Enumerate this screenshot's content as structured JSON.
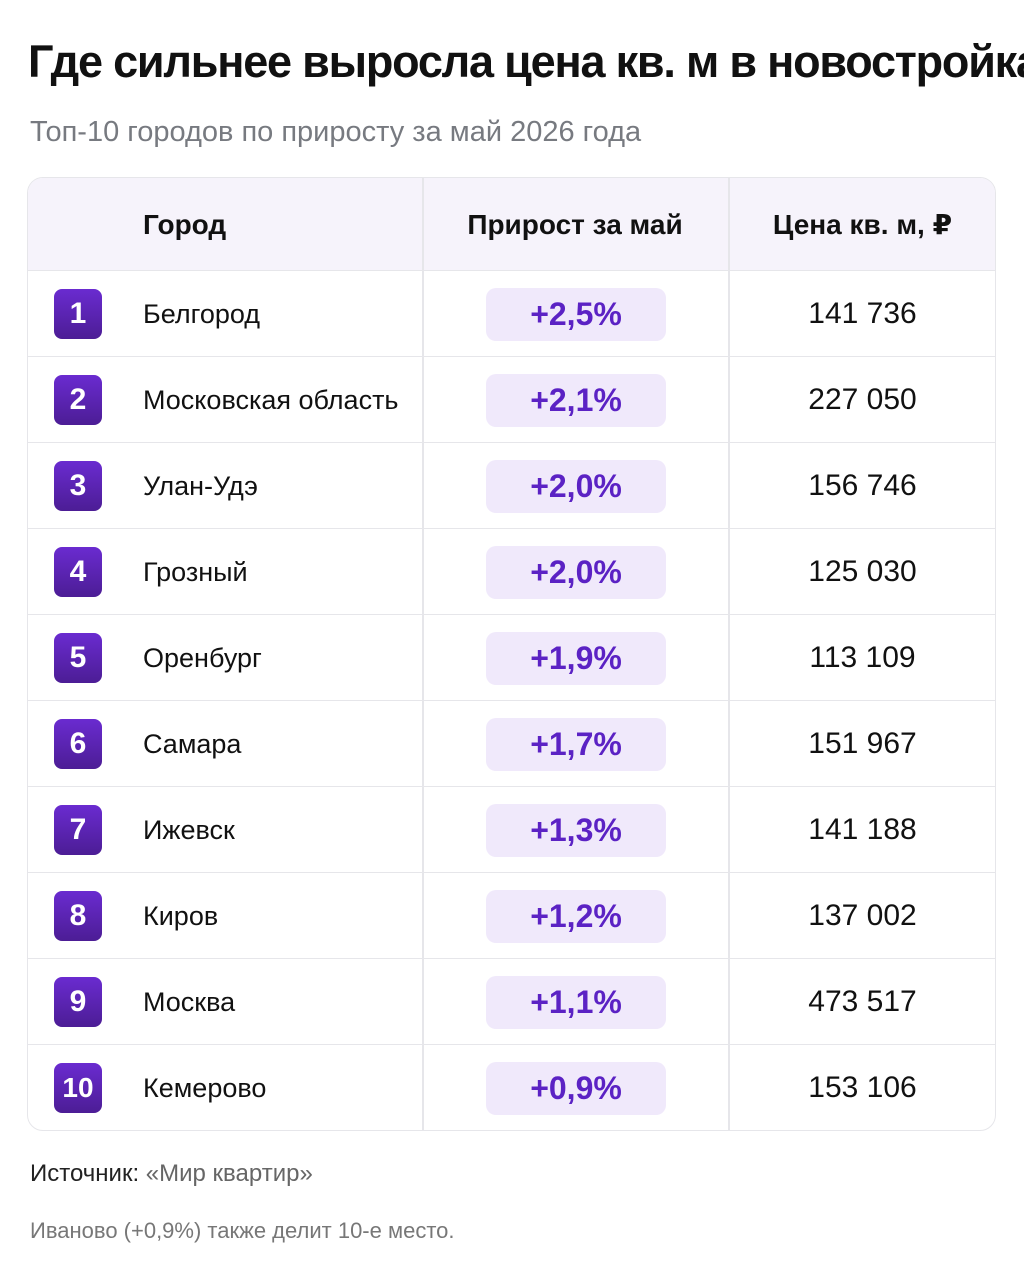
{
  "chart_data": {
    "type": "table",
    "title": "Где сильнее выросла цена кв. м в новостройках",
    "subtitle": "Топ-10 городов по приросту за май 2026 года",
    "columns": [
      "Город",
      "Прирост за май",
      "Цена кв. м, ₽"
    ],
    "rows": [
      {
        "rank": "1",
        "city": "Белгород",
        "growth": "+2,5%",
        "price": "141 736"
      },
      {
        "rank": "2",
        "city": "Московская область",
        "growth": "+2,1%",
        "price": "227 050"
      },
      {
        "rank": "3",
        "city": "Улан-Удэ",
        "growth": "+2,0%",
        "price": "156 746"
      },
      {
        "rank": "4",
        "city": "Грозный",
        "growth": "+2,0%",
        "price": "125 030"
      },
      {
        "rank": "5",
        "city": "Оренбург",
        "growth": "+1,9%",
        "price": "113 109"
      },
      {
        "rank": "6",
        "city": "Самара",
        "growth": "+1,7%",
        "price": "151 967"
      },
      {
        "rank": "7",
        "city": "Ижевск",
        "growth": "+1,3%",
        "price": "141 188"
      },
      {
        "rank": "8",
        "city": "Киров",
        "growth": "+1,2%",
        "price": "137 002"
      },
      {
        "rank": "9",
        "city": "Москва",
        "growth": "+1,1%",
        "price": "473 517"
      },
      {
        "rank": "10",
        "city": "Кемерово",
        "growth": "+0,9%",
        "price": "153 106"
      }
    ],
    "source_label": "Источник:",
    "source_name": "«Мир квартир»",
    "note": "Иваново (+0,9%) также делит 10-е место."
  },
  "colors": {
    "rank_badge": "#5b21b6",
    "growth_pill_bg": "#f0e9fb",
    "growth_text": "#5b22c4",
    "header_bg": "#f6f3fb"
  }
}
